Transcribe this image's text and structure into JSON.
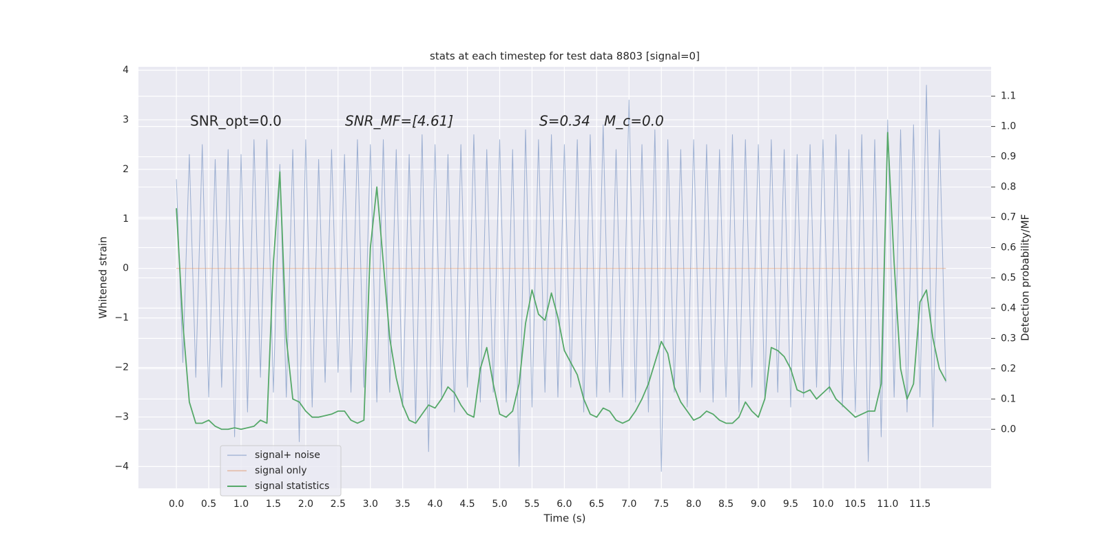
{
  "chart_data": {
    "type": "line",
    "title": "stats at each timestep for test data 8803 [signal=0]",
    "xlabel": "Time (s)",
    "ylabel": "Whitened strain",
    "y2label": "Detection probability/MF",
    "annotations": [
      "SNR_opt=0.0",
      "SNR_MF=[4.61]",
      "S=0.34",
      "M_c=0.0"
    ],
    "x": [
      0.0,
      0.1,
      0.2,
      0.3,
      0.4,
      0.5,
      0.6,
      0.7,
      0.8,
      0.9,
      1.0,
      1.1,
      1.2,
      1.3,
      1.4,
      1.5,
      1.6,
      1.7,
      1.8,
      1.9,
      2.0,
      2.1,
      2.2,
      2.3,
      2.4,
      2.5,
      2.6,
      2.7,
      2.8,
      2.9,
      3.0,
      3.1,
      3.2,
      3.3,
      3.4,
      3.5,
      3.6,
      3.7,
      3.8,
      3.9,
      4.0,
      4.1,
      4.2,
      4.3,
      4.4,
      4.5,
      4.6,
      4.7,
      4.8,
      4.9,
      5.0,
      5.1,
      5.2,
      5.3,
      5.4,
      5.5,
      5.6,
      5.7,
      5.8,
      5.9,
      6.0,
      6.1,
      6.2,
      6.3,
      6.4,
      6.5,
      6.6,
      6.7,
      6.8,
      6.9,
      7.0,
      7.1,
      7.2,
      7.3,
      7.4,
      7.5,
      7.6,
      7.7,
      7.8,
      7.9,
      8.0,
      8.1,
      8.2,
      8.3,
      8.4,
      8.5,
      8.6,
      8.7,
      8.8,
      8.9,
      9.0,
      9.1,
      9.2,
      9.3,
      9.4,
      9.5,
      9.6,
      9.7,
      9.8,
      9.9,
      10.0,
      10.1,
      10.2,
      10.3,
      10.4,
      10.5,
      10.6,
      10.7,
      10.8,
      10.9,
      11.0,
      11.1,
      11.2,
      11.3,
      11.4,
      11.5,
      11.6,
      11.7,
      11.8,
      11.9
    ],
    "series": [
      {
        "name": "signal+ noise",
        "color": "#4c72b0",
        "axis": "y",
        "values": [
          1.8,
          -1.9,
          2.3,
          -2.2,
          2.5,
          -2.6,
          2.2,
          -2.4,
          2.4,
          -3.4,
          2.3,
          -2.9,
          2.6,
          -2.2,
          2.6,
          -2.5,
          2.1,
          -2.6,
          2.4,
          -3.5,
          2.6,
          -2.8,
          2.2,
          -2.3,
          2.4,
          -2.1,
          2.3,
          -2.5,
          2.6,
          -2.4,
          2.5,
          -2.7,
          2.6,
          -2.5,
          2.4,
          -2.8,
          2.3,
          -3.1,
          2.7,
          -3.7,
          2.5,
          -2.6,
          2.3,
          -2.9,
          2.5,
          -2.4,
          2.7,
          -2.7,
          2.4,
          -2.5,
          2.6,
          -2.7,
          2.4,
          -4.0,
          2.8,
          -2.8,
          2.6,
          -2.5,
          2.7,
          -2.6,
          2.5,
          -2.4,
          2.6,
          -2.9,
          2.7,
          -2.6,
          2.9,
          -2.5,
          2.4,
          -2.6,
          3.4,
          -2.7,
          2.5,
          -2.9,
          2.8,
          -4.1,
          2.6,
          -2.5,
          2.4,
          -2.8,
          2.6,
          -2.5,
          2.5,
          -2.7,
          2.4,
          -2.6,
          2.7,
          -2.9,
          2.6,
          -2.4,
          2.5,
          -2.6,
          2.6,
          -2.5,
          2.4,
          -2.8,
          2.3,
          -2.6,
          2.5,
          -2.4,
          2.6,
          -2.5,
          2.7,
          -2.8,
          2.4,
          -2.9,
          2.7,
          -3.9,
          2.6,
          -3.4,
          3.0,
          -2.6,
          2.8,
          -2.9,
          2.9,
          -2.6,
          3.7,
          -3.2,
          2.8,
          -2.3
        ]
      },
      {
        "name": "signal only",
        "color": "#dd8452",
        "axis": "y",
        "values": [
          0,
          0,
          0,
          0,
          0,
          0,
          0,
          0,
          0,
          0,
          0,
          0,
          0,
          0,
          0,
          0,
          0,
          0,
          0,
          0,
          0,
          0,
          0,
          0,
          0,
          0,
          0,
          0,
          0,
          0,
          0,
          0,
          0,
          0,
          0,
          0,
          0,
          0,
          0,
          0,
          0,
          0,
          0,
          0,
          0,
          0,
          0,
          0,
          0,
          0,
          0,
          0,
          0,
          0,
          0,
          0,
          0,
          0,
          0,
          0,
          0,
          0,
          0,
          0,
          0,
          0,
          0,
          0,
          0,
          0,
          0,
          0,
          0,
          0,
          0,
          0,
          0,
          0,
          0,
          0,
          0,
          0,
          0,
          0,
          0,
          0,
          0,
          0,
          0,
          0,
          0,
          0,
          0,
          0,
          0,
          0,
          0,
          0,
          0,
          0,
          0,
          0,
          0,
          0,
          0,
          0,
          0,
          0,
          0,
          0,
          0,
          0,
          0,
          0,
          0,
          0,
          0,
          0,
          0,
          0
        ]
      },
      {
        "name": "signal statistics",
        "color": "#55a868",
        "axis": "y2",
        "values": [
          0.73,
          0.35,
          0.09,
          0.02,
          0.02,
          0.03,
          0.01,
          0.0,
          0.0,
          0.005,
          0.0,
          0.005,
          0.01,
          0.03,
          0.02,
          0.55,
          0.85,
          0.3,
          0.1,
          0.09,
          0.06,
          0.04,
          0.04,
          0.045,
          0.05,
          0.06,
          0.06,
          0.03,
          0.02,
          0.03,
          0.6,
          0.8,
          0.55,
          0.3,
          0.17,
          0.08,
          0.03,
          0.02,
          0.05,
          0.08,
          0.07,
          0.1,
          0.14,
          0.12,
          0.08,
          0.05,
          0.04,
          0.2,
          0.27,
          0.15,
          0.05,
          0.04,
          0.06,
          0.15,
          0.35,
          0.46,
          0.38,
          0.36,
          0.45,
          0.37,
          0.26,
          0.22,
          0.18,
          0.1,
          0.05,
          0.04,
          0.07,
          0.06,
          0.03,
          0.02,
          0.03,
          0.06,
          0.1,
          0.15,
          0.22,
          0.29,
          0.25,
          0.14,
          0.09,
          0.06,
          0.03,
          0.04,
          0.06,
          0.05,
          0.03,
          0.02,
          0.02,
          0.04,
          0.09,
          0.06,
          0.04,
          0.1,
          0.27,
          0.26,
          0.24,
          0.2,
          0.13,
          0.12,
          0.13,
          0.1,
          0.12,
          0.14,
          0.1,
          0.08,
          0.06,
          0.04,
          0.05,
          0.06,
          0.06,
          0.15,
          0.98,
          0.55,
          0.2,
          0.1,
          0.15,
          0.42,
          0.46,
          0.3,
          0.2,
          0.16
        ]
      }
    ],
    "xlim": [
      -0.587,
      12.6
    ],
    "ylim": [
      -4.44,
      4.07
    ],
    "y2lim": [
      -0.195,
      1.197
    ],
    "xticks": [
      {
        "value": 0,
        "label": "0.0"
      },
      0.5,
      {
        "value": 1,
        "label": "1.0"
      },
      1.5,
      {
        "value": 2,
        "label": "2.0"
      },
      2.5,
      {
        "value": 3,
        "label": "3.0"
      },
      3.5,
      {
        "value": 4,
        "label": "4.0"
      },
      4.5,
      {
        "value": 5,
        "label": "5.0"
      },
      5.5,
      {
        "value": 6,
        "label": "6.0"
      },
      6.5,
      {
        "value": 7,
        "label": "7.0"
      },
      7.5,
      {
        "value": 8,
        "label": "8.0"
      },
      8.5,
      {
        "value": 9,
        "label": "9.0"
      },
      9.5,
      {
        "value": 10,
        "label": "10.0"
      },
      10.5,
      {
        "value": 11,
        "label": "11.0"
      },
      11.5
    ],
    "yticks": [
      {
        "value": -4,
        "label": "−4"
      },
      {
        "value": -3,
        "label": "−3"
      },
      {
        "value": -2,
        "label": "−2"
      },
      {
        "value": -1,
        "label": "−1"
      },
      0,
      1,
      2,
      3,
      4
    ],
    "y2ticks": [
      {
        "value": 0,
        "label": "0.0"
      },
      0.1,
      0.2,
      0.3,
      0.4,
      0.5,
      0.6,
      0.7,
      0.8,
      0.9,
      {
        "value": 1,
        "label": "1.0"
      },
      1.1
    ],
    "grid": true,
    "legend": "lower left"
  }
}
